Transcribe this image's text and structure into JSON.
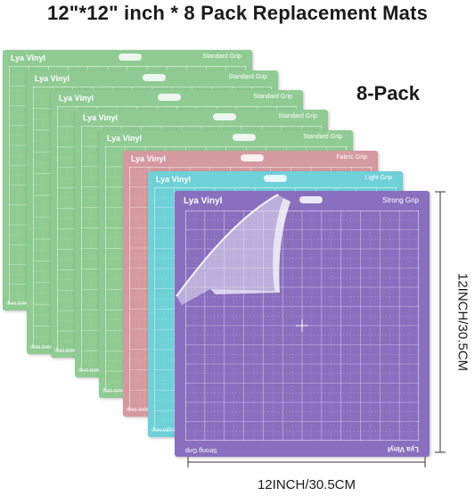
{
  "title": "12\"*12\" inch * 8 Pack Replacement Mats",
  "pack_label": "8-Pack",
  "brand": "Lya Vinyl",
  "mats": [
    {
      "grip": "Standard Grip",
      "color": "#8fcb93"
    },
    {
      "grip": "Standard Grip",
      "color": "#8fcb93"
    },
    {
      "grip": "Standard Grip",
      "color": "#8fcb93"
    },
    {
      "grip": "Standard Grip",
      "color": "#8fcb93"
    },
    {
      "grip": "Standard Grip",
      "color": "#8fcb93"
    },
    {
      "grip": "Fabric Grip",
      "color": "#d49aa0"
    },
    {
      "grip": "Light Grip",
      "color": "#6fd0d8"
    },
    {
      "grip": "Strong Grip",
      "color": "#8a6fbf"
    }
  ],
  "rotated_grip_labels": [
    "Standard Grip",
    "Fabric Grip",
    "Light Grip",
    "Strong Grip"
  ],
  "width_label": "12INCH/30.5CM",
  "height_label": "12INCH/30.5CM"
}
